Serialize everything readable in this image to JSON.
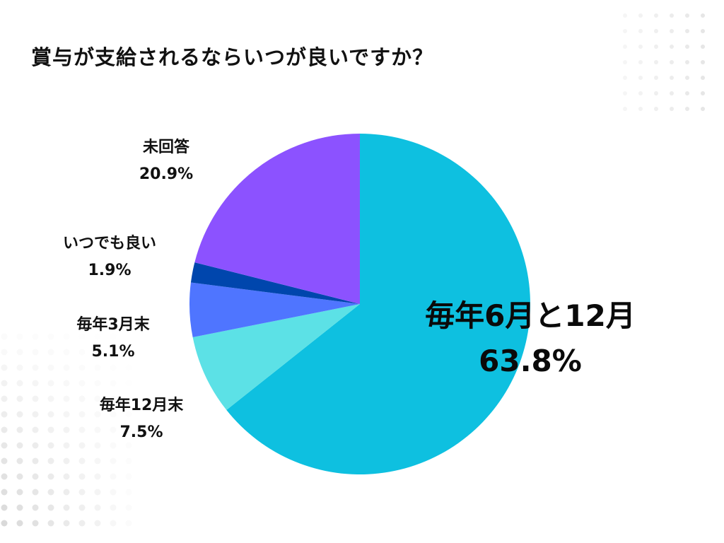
{
  "title": "賞与が支給されるならいつが良いですか？",
  "chart_data": {
    "type": "pie",
    "start_angle_deg": 0,
    "direction": "clockwise",
    "slices": [
      {
        "label": "毎年6月と12月",
        "value": 63.8,
        "value_text": "63.8%",
        "color": "#0ec0e0"
      },
      {
        "label": "毎年12月末",
        "value": 7.5,
        "value_text": "7.5%",
        "color": "#5ce1e6"
      },
      {
        "label": "毎年3月末",
        "value": 5.1,
        "value_text": "5.1%",
        "color": "#4f75ff"
      },
      {
        "label": "いつでも良い",
        "value": 1.9,
        "value_text": "1.9%",
        "color": "#0046ad"
      },
      {
        "label": "未回答",
        "value": 20.9,
        "value_text": "20.9%",
        "color": "#8c52ff"
      }
    ]
  }
}
